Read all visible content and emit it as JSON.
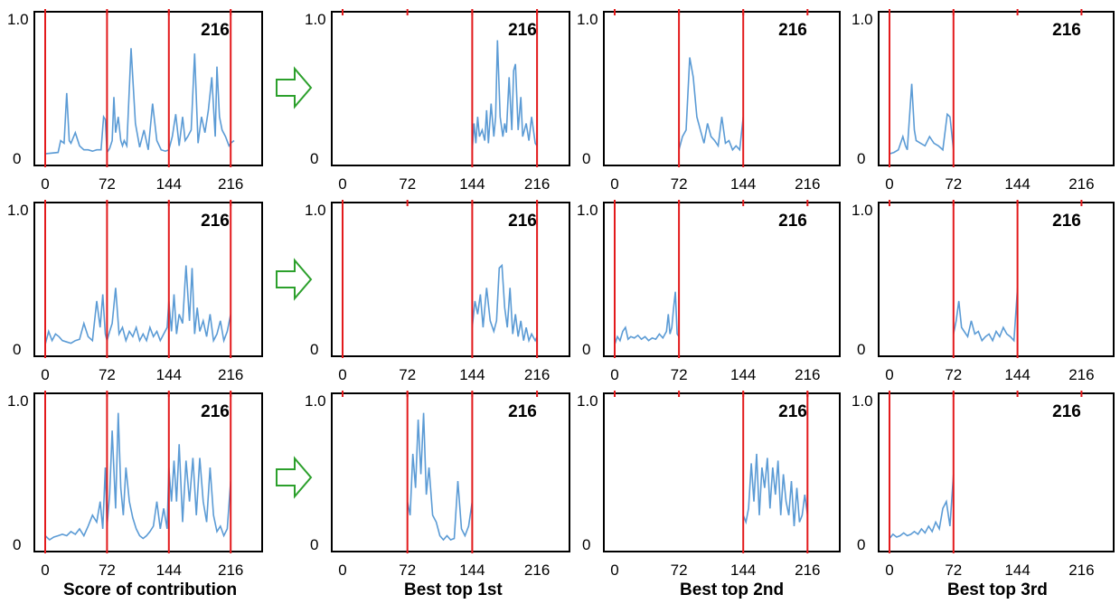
{
  "figure": {
    "columns": [
      "Score of contribution",
      "Best top 1st",
      "Best top 2nd",
      "Best top 3rd"
    ],
    "colors": {
      "line": "#5b9bd5",
      "divider": "#e31a1c",
      "arrow": "#2ca02c",
      "frame": "#000000"
    }
  },
  "chart_data": [
    {
      "type": "line",
      "row": 0,
      "col": 0,
      "xticks": [
        "0",
        "72",
        "144",
        "216"
      ],
      "yticks": [
        "0",
        "1.0"
      ],
      "annotation": "216",
      "xlim": [
        0,
        240
      ],
      "ylim": [
        0,
        1
      ],
      "dividers": [
        0,
        72,
        144,
        216
      ],
      "series": [
        {
          "x": [
            0,
            15,
            18,
            22,
            25,
            28,
            30,
            35,
            40,
            45,
            50,
            55,
            60,
            65,
            68,
            70,
            72,
            75,
            78,
            80,
            82,
            85,
            88,
            90,
            92,
            95,
            100,
            105,
            110,
            115,
            120,
            125,
            130,
            135,
            140,
            144,
            148,
            152,
            156,
            160,
            163,
            166,
            170,
            174,
            178,
            182,
            186,
            190,
            194,
            198,
            200,
            203,
            206,
            210,
            214,
            216,
            220
          ],
          "y": [
            0.02,
            0.03,
            0.12,
            0.1,
            0.48,
            0.12,
            0.1,
            0.18,
            0.08,
            0.05,
            0.05,
            0.04,
            0.05,
            0.05,
            0.3,
            0.28,
            0.03,
            0.06,
            0.12,
            0.45,
            0.18,
            0.3,
            0.12,
            0.08,
            0.12,
            0.08,
            0.82,
            0.25,
            0.07,
            0.2,
            0.05,
            0.4,
            0.12,
            0.05,
            0.04,
            0.05,
            0.15,
            0.32,
            0.08,
            0.3,
            0.12,
            0.15,
            0.2,
            0.78,
            0.1,
            0.3,
            0.18,
            0.35,
            0.6,
            0.15,
            0.68,
            0.3,
            0.2,
            0.15,
            0.08,
            0.1,
            0.12
          ]
        }
      ]
    },
    {
      "type": "line",
      "row": 0,
      "col": 1,
      "xticks": [
        "0",
        "72",
        "144",
        "216"
      ],
      "yticks": [
        "0",
        "1.0"
      ],
      "annotation": "216",
      "xlim": [
        0,
        240
      ],
      "ylim": [
        0,
        1
      ],
      "dividers": [
        144,
        216
      ],
      "series": [
        {
          "x": [
            144,
            146,
            148,
            150,
            152,
            155,
            158,
            160,
            162,
            165,
            168,
            170,
            172,
            175,
            178,
            180,
            182,
            185,
            188,
            190,
            192,
            195,
            198,
            200,
            204,
            207,
            210,
            214,
            216
          ],
          "y": [
            0.05,
            0.25,
            0.1,
            0.3,
            0.15,
            0.2,
            0.12,
            0.35,
            0.1,
            0.4,
            0.15,
            0.3,
            0.88,
            0.3,
            0.15,
            0.25,
            0.18,
            0.6,
            0.2,
            0.65,
            0.7,
            0.2,
            0.45,
            0.15,
            0.25,
            0.12,
            0.3,
            0.1,
            0.08
          ]
        }
      ]
    },
    {
      "type": "line",
      "row": 0,
      "col": 2,
      "xticks": [
        "0",
        "72",
        "144",
        "216"
      ],
      "yticks": [
        "0",
        "1.0"
      ],
      "annotation": "216",
      "xlim": [
        0,
        240
      ],
      "ylim": [
        0,
        1
      ],
      "dividers": [
        72,
        144
      ],
      "series": [
        {
          "x": [
            72,
            76,
            80,
            84,
            88,
            92,
            96,
            100,
            104,
            108,
            112,
            116,
            120,
            124,
            128,
            132,
            136,
            140,
            144
          ],
          "y": [
            0.05,
            0.15,
            0.2,
            0.75,
            0.6,
            0.3,
            0.2,
            0.1,
            0.25,
            0.15,
            0.12,
            0.08,
            0.3,
            0.1,
            0.12,
            0.05,
            0.08,
            0.05,
            0.3
          ]
        }
      ]
    },
    {
      "type": "line",
      "row": 0,
      "col": 3,
      "xticks": [
        "0",
        "72",
        "144",
        "216"
      ],
      "yticks": [
        "0",
        "1.0"
      ],
      "annotation": "216",
      "xlim": [
        0,
        240
      ],
      "ylim": [
        0,
        1
      ],
      "dividers": [
        0,
        72
      ],
      "series": [
        {
          "x": [
            0,
            5,
            10,
            15,
            18,
            20,
            25,
            28,
            30,
            35,
            40,
            45,
            50,
            55,
            60,
            65,
            68,
            72
          ],
          "y": [
            0.02,
            0.03,
            0.05,
            0.15,
            0.08,
            0.05,
            0.55,
            0.2,
            0.12,
            0.1,
            0.08,
            0.15,
            0.1,
            0.08,
            0.05,
            0.32,
            0.3,
            0.05
          ]
        }
      ]
    },
    {
      "type": "line",
      "row": 1,
      "col": 0,
      "xticks": [
        "0",
        "72",
        "144",
        "216"
      ],
      "yticks": [
        "0",
        "1.0"
      ],
      "annotation": "216",
      "xlim": [
        0,
        240
      ],
      "ylim": [
        0,
        1
      ],
      "dividers": [
        0,
        72,
        144,
        216
      ],
      "series": [
        {
          "x": [
            0,
            4,
            8,
            12,
            16,
            20,
            25,
            30,
            35,
            40,
            45,
            50,
            55,
            60,
            64,
            67,
            70,
            72,
            75,
            78,
            82,
            86,
            90,
            94,
            98,
            102,
            106,
            110,
            114,
            118,
            122,
            126,
            130,
            134,
            138,
            142,
            144,
            147,
            150,
            153,
            156,
            160,
            164,
            168,
            171,
            174,
            177,
            180,
            184,
            188,
            192,
            196,
            200,
            204,
            208,
            212,
            216
          ],
          "y": [
            0.02,
            0.12,
            0.05,
            0.1,
            0.08,
            0.05,
            0.04,
            0.03,
            0.05,
            0.06,
            0.18,
            0.08,
            0.05,
            0.35,
            0.15,
            0.4,
            0.1,
            0.05,
            0.12,
            0.18,
            0.45,
            0.1,
            0.15,
            0.05,
            0.12,
            0.08,
            0.15,
            0.05,
            0.1,
            0.05,
            0.15,
            0.08,
            0.12,
            0.05,
            0.1,
            0.15,
            0.35,
            0.12,
            0.4,
            0.1,
            0.25,
            0.18,
            0.62,
            0.2,
            0.6,
            0.1,
            0.3,
            0.12,
            0.2,
            0.08,
            0.25,
            0.05,
            0.1,
            0.2,
            0.05,
            0.12,
            0.25
          ]
        }
      ]
    },
    {
      "type": "line",
      "row": 1,
      "col": 1,
      "xticks": [
        "0",
        "72",
        "144",
        "216"
      ],
      "yticks": [
        "0",
        "1.0"
      ],
      "annotation": "216",
      "xlim": [
        0,
        240
      ],
      "ylim": [
        0,
        1
      ],
      "dividers": [
        0,
        144,
        216
      ],
      "series": [
        {
          "x": [
            144,
            147,
            150,
            153,
            156,
            160,
            164,
            168,
            171,
            174,
            177,
            180,
            183,
            186,
            189,
            192,
            195,
            198,
            201,
            204,
            207,
            210,
            214,
            216
          ],
          "y": [
            0.15,
            0.35,
            0.25,
            0.4,
            0.15,
            0.45,
            0.2,
            0.12,
            0.2,
            0.6,
            0.62,
            0.3,
            0.15,
            0.45,
            0.1,
            0.25,
            0.08,
            0.2,
            0.05,
            0.15,
            0.05,
            0.1,
            0.05,
            0.08
          ]
        }
      ]
    },
    {
      "type": "line",
      "row": 1,
      "col": 2,
      "xticks": [
        "0",
        "72",
        "144",
        "216"
      ],
      "yticks": [
        "0",
        "1.0"
      ],
      "annotation": "216",
      "xlim": [
        0,
        240
      ],
      "ylim": [
        0,
        1
      ],
      "dividers": [
        0,
        72
      ],
      "series": [
        {
          "x": [
            0,
            3,
            6,
            9,
            12,
            15,
            18,
            22,
            26,
            30,
            34,
            38,
            42,
            46,
            50,
            54,
            58,
            60,
            62,
            64,
            66,
            68,
            70,
            72
          ],
          "y": [
            0.02,
            0.08,
            0.05,
            0.12,
            0.15,
            0.06,
            0.08,
            0.07,
            0.09,
            0.06,
            0.08,
            0.05,
            0.07,
            0.06,
            0.1,
            0.07,
            0.12,
            0.25,
            0.1,
            0.15,
            0.3,
            0.42,
            0.1,
            0.08
          ]
        }
      ]
    },
    {
      "type": "line",
      "row": 1,
      "col": 3,
      "xticks": [
        "0",
        "72",
        "144",
        "216"
      ],
      "yticks": [
        "0",
        "1.0"
      ],
      "annotation": "216",
      "xlim": [
        0,
        240
      ],
      "ylim": [
        0,
        1
      ],
      "dividers": [
        72,
        144
      ],
      "series": [
        {
          "x": [
            72,
            75,
            78,
            81,
            84,
            88,
            92,
            96,
            100,
            104,
            108,
            112,
            116,
            120,
            124,
            128,
            132,
            136,
            140,
            144
          ],
          "y": [
            0.1,
            0.2,
            0.35,
            0.15,
            0.12,
            0.08,
            0.2,
            0.1,
            0.12,
            0.05,
            0.08,
            0.1,
            0.05,
            0.12,
            0.08,
            0.15,
            0.1,
            0.08,
            0.05,
            0.45
          ]
        }
      ]
    },
    {
      "type": "line",
      "row": 2,
      "col": 0,
      "xticks": [
        "0",
        "72",
        "144",
        "216"
      ],
      "yticks": [
        "0",
        "1.0"
      ],
      "annotation": "216",
      "xlim": [
        0,
        240
      ],
      "ylim": [
        0,
        1
      ],
      "dividers": [
        0,
        72,
        144,
        216
      ],
      "series": [
        {
          "x": [
            0,
            5,
            10,
            15,
            20,
            25,
            30,
            35,
            40,
            45,
            50,
            55,
            60,
            64,
            67,
            70,
            72,
            75,
            78,
            82,
            85,
            88,
            91,
            94,
            98,
            102,
            106,
            110,
            114,
            118,
            122,
            126,
            130,
            134,
            138,
            142,
            144,
            147,
            150,
            153,
            156,
            160,
            164,
            168,
            172,
            176,
            180,
            184,
            188,
            192,
            196,
            200,
            204,
            208,
            212,
            216
          ],
          "y": [
            0.05,
            0.02,
            0.04,
            0.05,
            0.06,
            0.05,
            0.08,
            0.06,
            0.1,
            0.05,
            0.12,
            0.2,
            0.15,
            0.3,
            0.1,
            0.55,
            0.12,
            0.35,
            0.82,
            0.25,
            0.95,
            0.4,
            0.2,
            0.55,
            0.3,
            0.18,
            0.1,
            0.05,
            0.03,
            0.05,
            0.08,
            0.12,
            0.3,
            0.1,
            0.25,
            0.1,
            0.55,
            0.3,
            0.6,
            0.3,
            0.72,
            0.15,
            0.6,
            0.3,
            0.62,
            0.2,
            0.62,
            0.3,
            0.15,
            0.55,
            0.2,
            0.08,
            0.12,
            0.05,
            0.1,
            0.45
          ]
        }
      ]
    },
    {
      "type": "line",
      "row": 2,
      "col": 1,
      "xticks": [
        "0",
        "72",
        "144",
        "216"
      ],
      "yticks": [
        "0",
        "1.0"
      ],
      "annotation": "216",
      "xlim": [
        0,
        240
      ],
      "ylim": [
        0,
        1
      ],
      "dividers": [
        72,
        144
      ],
      "series": [
        {
          "x": [
            72,
            75,
            78,
            81,
            84,
            87,
            90,
            93,
            96,
            100,
            104,
            108,
            112,
            116,
            120,
            124,
            128,
            132,
            136,
            140,
            144
          ],
          "y": [
            0.3,
            0.2,
            0.65,
            0.4,
            0.9,
            0.5,
            0.95,
            0.35,
            0.55,
            0.2,
            0.15,
            0.05,
            0.02,
            0.05,
            0.02,
            0.03,
            0.45,
            0.1,
            0.05,
            0.12,
            0.3
          ]
        }
      ]
    },
    {
      "type": "line",
      "row": 2,
      "col": 2,
      "xticks": [
        "0",
        "72",
        "144",
        "216"
      ],
      "yticks": [
        "0",
        "1.0"
      ],
      "annotation": "216",
      "xlim": [
        0,
        240
      ],
      "ylim": [
        0,
        1
      ],
      "dividers": [
        144,
        216
      ],
      "series": [
        {
          "x": [
            144,
            147,
            150,
            153,
            156,
            159,
            162,
            165,
            168,
            171,
            174,
            177,
            180,
            183,
            186,
            189,
            192,
            195,
            198,
            201,
            204,
            207,
            210,
            213,
            216
          ],
          "y": [
            0.2,
            0.15,
            0.25,
            0.58,
            0.3,
            0.65,
            0.2,
            0.55,
            0.4,
            0.62,
            0.25,
            0.55,
            0.35,
            0.6,
            0.2,
            0.5,
            0.3,
            0.2,
            0.45,
            0.12,
            0.4,
            0.15,
            0.2,
            0.35,
            0.2
          ]
        }
      ]
    },
    {
      "type": "line",
      "row": 2,
      "col": 3,
      "xticks": [
        "0",
        "72",
        "144",
        "216"
      ],
      "yticks": [
        "0",
        "1.0"
      ],
      "annotation": "216",
      "xlim": [
        0,
        240
      ],
      "ylim": [
        0,
        1
      ],
      "dividers": [
        0,
        72
      ],
      "series": [
        {
          "x": [
            0,
            4,
            8,
            12,
            16,
            20,
            24,
            28,
            32,
            36,
            40,
            44,
            48,
            52,
            56,
            60,
            64,
            68,
            72
          ],
          "y": [
            0.03,
            0.06,
            0.04,
            0.05,
            0.07,
            0.05,
            0.06,
            0.08,
            0.06,
            0.1,
            0.07,
            0.12,
            0.08,
            0.15,
            0.1,
            0.25,
            0.3,
            0.12,
            0.5
          ]
        }
      ]
    }
  ]
}
